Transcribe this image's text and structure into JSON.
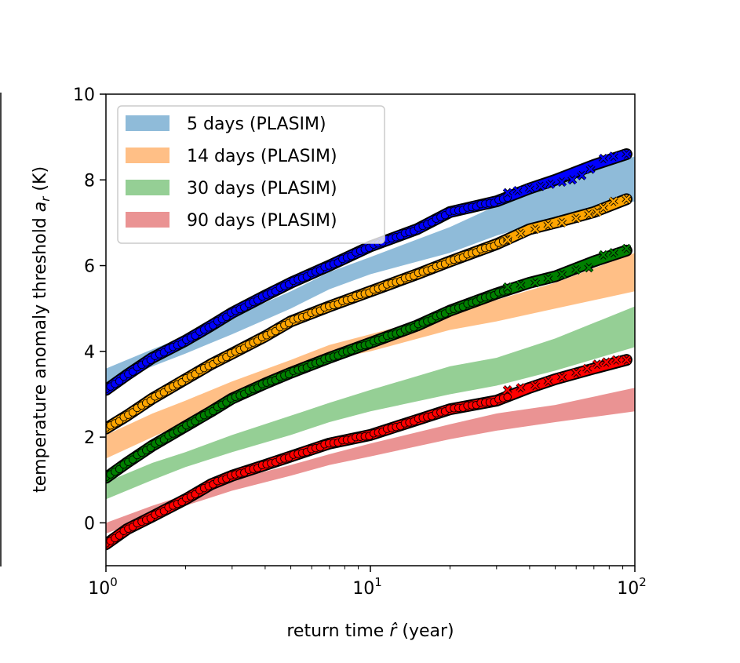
{
  "chart_data": {
    "type": "line",
    "xscale": "log",
    "xlim": [
      1,
      100
    ],
    "ylim": [
      -1,
      10
    ],
    "xlabel": "return time r̂ (year)",
    "xlabel_parts": {
      "pre": "return time ",
      "var": "r̂",
      "post": " (year)"
    },
    "ylabel": "temperature anomaly threshold a_r (K)",
    "ylabel_parts": {
      "pre": "temperature anomaly threshold ",
      "var": "a",
      "sub": "r",
      "post": " (K)"
    },
    "xticks": [
      {
        "value": 1,
        "base": "10",
        "exp": "0"
      },
      {
        "value": 10,
        "base": "10",
        "exp": "1"
      },
      {
        "value": 100,
        "base": "10",
        "exp": "2"
      }
    ],
    "yticks": [
      0,
      2,
      4,
      6,
      8,
      10
    ],
    "legend_position": "top-left",
    "legend": [
      "5 days (PLASIM)",
      "14 days (PLASIM)",
      "30 days (PLASIM)",
      "90 days (PLASIM)"
    ],
    "bands": [
      {
        "name": "5 days (PLASIM)",
        "color": "#1f77b4",
        "opacity": 0.5,
        "x": [
          1,
          1.5,
          2,
          3,
          5,
          7,
          10,
          20,
          30,
          50,
          100
        ],
        "lower": [
          3.2,
          3.65,
          3.95,
          4.4,
          5.0,
          5.45,
          5.8,
          6.3,
          6.7,
          7.1,
          7.5
        ],
        "upper": [
          3.6,
          4.05,
          4.35,
          4.8,
          5.4,
          5.85,
          6.2,
          6.9,
          7.4,
          7.9,
          8.55
        ]
      },
      {
        "name": "14 days (PLASIM)",
        "color": "#ff7f0e",
        "opacity": 0.5,
        "x": [
          1,
          1.5,
          2,
          3,
          5,
          7,
          10,
          20,
          30,
          50,
          100
        ],
        "lower": [
          1.5,
          2.0,
          2.35,
          2.8,
          3.4,
          3.8,
          4.0,
          4.5,
          4.7,
          5.0,
          5.4
        ],
        "upper": [
          2.05,
          2.55,
          2.85,
          3.3,
          3.8,
          4.15,
          4.4,
          4.9,
          5.2,
          5.6,
          6.3
        ]
      },
      {
        "name": "30 days (PLASIM)",
        "color": "#2ca02c",
        "opacity": 0.5,
        "x": [
          1,
          1.5,
          2,
          3,
          5,
          7,
          10,
          20,
          30,
          50,
          100
        ],
        "lower": [
          0.55,
          1.0,
          1.3,
          1.65,
          2.05,
          2.35,
          2.6,
          3.0,
          3.2,
          3.55,
          4.1
        ],
        "upper": [
          0.95,
          1.4,
          1.65,
          2.05,
          2.5,
          2.8,
          3.1,
          3.65,
          3.85,
          4.3,
          5.05
        ]
      },
      {
        "name": "90 days (PLASIM)",
        "color": "#d62728",
        "opacity": 0.5,
        "x": [
          1,
          1.5,
          2,
          3,
          5,
          7,
          10,
          20,
          30,
          50,
          100
        ],
        "lower": [
          -0.25,
          0.15,
          0.4,
          0.75,
          1.1,
          1.35,
          1.55,
          1.95,
          2.15,
          2.35,
          2.6
        ],
        "upper": [
          0.0,
          0.4,
          0.65,
          1.0,
          1.35,
          1.6,
          1.85,
          2.3,
          2.55,
          2.75,
          3.15
        ]
      }
    ],
    "series": [
      {
        "name": "5 days",
        "color": "#0000ff",
        "x": [
          1,
          1.2,
          1.5,
          2,
          2.5,
          3,
          4,
          5,
          7,
          10,
          15,
          20,
          30,
          40,
          50,
          70,
          93
        ],
        "y": [
          3.1,
          3.45,
          3.85,
          4.25,
          4.6,
          4.9,
          5.3,
          5.6,
          6.0,
          6.45,
          6.85,
          7.25,
          7.5,
          7.8,
          8.0,
          8.35,
          8.6
        ]
      },
      {
        "name": "14 days",
        "color": "#ffa500",
        "x": [
          1,
          1.2,
          1.5,
          2,
          2.5,
          3,
          4,
          5,
          7,
          10,
          15,
          20,
          30,
          40,
          50,
          70,
          93
        ],
        "y": [
          2.2,
          2.5,
          2.9,
          3.35,
          3.7,
          3.95,
          4.35,
          4.7,
          5.05,
          5.4,
          5.8,
          6.1,
          6.5,
          6.85,
          7.0,
          7.25,
          7.55
        ]
      },
      {
        "name": "30 days",
        "color": "#008000",
        "x": [
          1,
          1.2,
          1.5,
          2,
          2.5,
          3,
          4,
          5,
          7,
          10,
          15,
          20,
          30,
          40,
          50,
          70,
          93
        ],
        "y": [
          1.05,
          1.4,
          1.8,
          2.25,
          2.6,
          2.9,
          3.25,
          3.5,
          3.85,
          4.2,
          4.6,
          4.95,
          5.35,
          5.6,
          5.75,
          6.1,
          6.35
        ]
      },
      {
        "name": "90 days",
        "color": "#ff0000",
        "x": [
          1,
          1.2,
          1.5,
          2,
          2.5,
          3,
          4,
          5,
          7,
          10,
          15,
          20,
          30,
          40,
          50,
          70,
          93
        ],
        "y": [
          -0.5,
          -0.15,
          0.15,
          0.55,
          0.9,
          1.1,
          1.35,
          1.55,
          1.85,
          2.05,
          2.4,
          2.65,
          2.85,
          3.15,
          3.35,
          3.6,
          3.8
        ]
      }
    ],
    "cross_markers": [
      {
        "series": "5 days",
        "color": "#0000ff",
        "x": [
          33,
          36,
          40,
          44,
          48,
          53,
          58,
          63,
          68,
          76,
          83,
          93
        ],
        "y": [
          7.7,
          7.75,
          7.8,
          7.85,
          7.9,
          7.95,
          8.0,
          8.1,
          8.25,
          8.5,
          8.55,
          8.6
        ]
      },
      {
        "series": "14 days",
        "color": "#ffa500",
        "x": [
          33,
          37,
          42,
          47,
          53,
          60,
          67,
          72,
          76,
          83,
          93
        ],
        "y": [
          6.6,
          6.75,
          6.85,
          6.95,
          7.0,
          7.1,
          7.2,
          7.25,
          7.35,
          7.5,
          7.55
        ]
      },
      {
        "series": "30 days",
        "color": "#008000",
        "x": [
          33,
          37,
          42,
          47,
          53,
          60,
          67,
          76,
          83,
          93
        ],
        "y": [
          5.5,
          5.55,
          5.6,
          5.7,
          5.8,
          5.9,
          5.95,
          6.25,
          6.3,
          6.4
        ]
      },
      {
        "series": "90 days",
        "color": "#ff0000",
        "x": [
          33,
          37,
          42,
          47,
          53,
          60,
          66,
          72,
          78,
          85,
          93
        ],
        "y": [
          3.1,
          3.15,
          3.2,
          3.3,
          3.4,
          3.5,
          3.6,
          3.7,
          3.75,
          3.8,
          3.8
        ]
      }
    ]
  }
}
